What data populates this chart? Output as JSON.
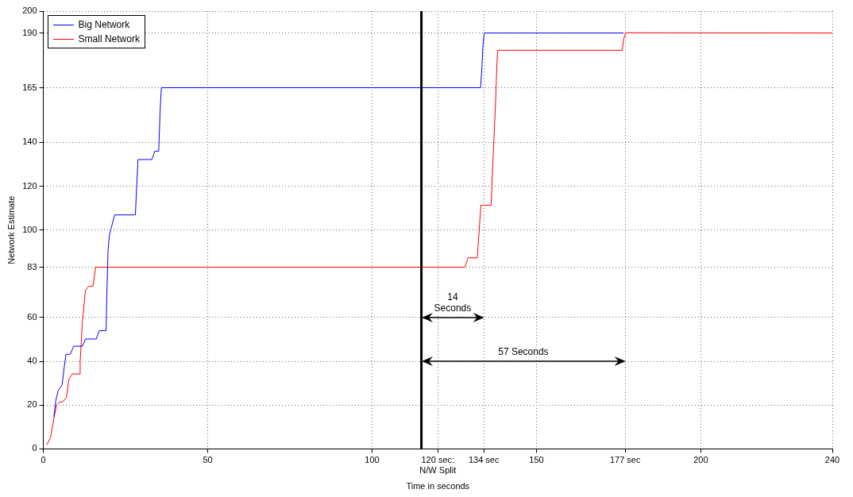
{
  "chart_data": {
    "type": "line",
    "xlabel": "Time in seconds",
    "ylabel": "Network Estimate",
    "xlim": [
      0,
      240
    ],
    "ylim": [
      0,
      200
    ],
    "xticks": [
      0,
      50,
      100,
      {
        "value": 120,
        "label": "120 sec: N/W Split"
      },
      {
        "value": 134,
        "label": "134 sec"
      },
      150,
      {
        "value": 177,
        "label": "177 sec"
      },
      200,
      240
    ],
    "yticks": [
      0,
      20,
      40,
      60,
      83,
      100,
      120,
      140,
      165,
      190,
      200
    ],
    "grid": true,
    "legend": "top left",
    "line_style": "solid",
    "marker": "none",
    "series": [
      {
        "name": "Big Network",
        "color": "#0000ff",
        "x": [
          3.2,
          3.8,
          4.6,
          5.7,
          6.4,
          6.9,
          8.2,
          9.2,
          11.9,
          12.8,
          16.1,
          17,
          19.1,
          19.3,
          19.7,
          20.1,
          21.7,
          28,
          28.4,
          28.8,
          33,
          33.9,
          35.1,
          35.5,
          35.9,
          133,
          133.4,
          133.7,
          134.1,
          176.5
        ],
        "values": [
          14.7,
          22.2,
          26.9,
          29.2,
          37.9,
          43.2,
          43.2,
          46.9,
          46.9,
          50.2,
          50.2,
          54,
          54,
          69.9,
          90.9,
          97.8,
          106.9,
          106.9,
          120,
          132.2,
          132.2,
          136,
          136,
          153.7,
          165,
          165,
          174,
          184,
          190,
          190
        ]
      },
      {
        "name": "Small Network",
        "color": "#ff0000",
        "x": [
          1.1,
          2.2,
          3.2,
          4,
          4.9,
          6,
          7,
          7.8,
          8.8,
          11,
          11.2,
          11.9,
          12.8,
          13.8,
          15.1,
          15.9,
          128.2,
          129.2,
          132,
          133.1,
          136.2,
          136.5,
          136.9,
          137.5,
          138,
          138.2,
          176.1,
          176.5,
          177.1,
          240
        ],
        "values": [
          1.9,
          5.3,
          13.6,
          20,
          21.3,
          21.6,
          23.4,
          32,
          34.2,
          34.2,
          39.8,
          58.3,
          72.3,
          74.3,
          74.3,
          83,
          83,
          87.3,
          87.3,
          111.3,
          111.3,
          122.3,
          136.2,
          156,
          177,
          182.1,
          182.1,
          187,
          190.1,
          190
        ]
      }
    ],
    "ref_lines": [
      {
        "axis": "x",
        "value": 115,
        "color": "#000000"
      }
    ],
    "annotations": [
      "14\nSeconds",
      "57 Seconds"
    ]
  }
}
